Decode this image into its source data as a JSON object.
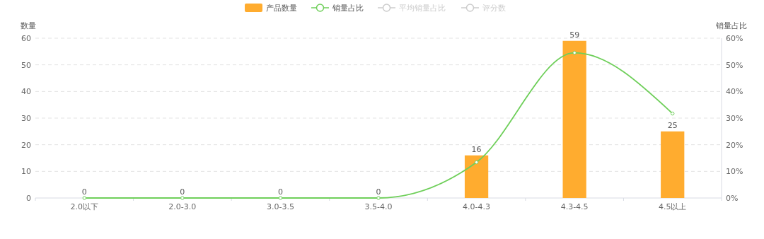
{
  "chart_data": {
    "type": "bar",
    "categories": [
      "2.0以下",
      "2.0-3.0",
      "3.0-3.5",
      "3.5-4.0",
      "4.0-4.3",
      "4.3-4.5",
      "4.5以上"
    ],
    "ylabel": "数量",
    "y2label": "销量占比",
    "ylim": [
      0,
      60
    ],
    "yticks": [
      0,
      10,
      20,
      30,
      40,
      50,
      60
    ],
    "y2lim": [
      0,
      0.6
    ],
    "y2ticks": [
      {
        "value": 0,
        "label": "0%"
      },
      {
        "value": 0.1,
        "label": "10%"
      },
      {
        "value": 0.2,
        "label": "20%"
      },
      {
        "value": 0.3,
        "label": "30%"
      },
      {
        "value": 0.4,
        "label": "40%"
      },
      {
        "value": 0.5,
        "label": "50%"
      },
      {
        "value": 0.6,
        "label": "60%"
      }
    ],
    "grid": "y",
    "legend": "top",
    "marker": "circle",
    "series": [
      {
        "name": "产品数量",
        "color": "#ffac2f",
        "values": [
          0,
          0,
          0,
          0,
          16,
          59,
          25
        ],
        "value_labels": [
          "0",
          "0",
          "0",
          "0",
          "16",
          "59",
          "25"
        ]
      },
      {
        "name": "销量占比",
        "type": "line",
        "axis": "y2",
        "color": "#6fcf5a",
        "values": [
          0,
          0,
          0,
          0,
          0.134,
          0.545,
          0.317
        ]
      },
      {
        "name": "平均销量占比",
        "type": "line",
        "axis": "y2",
        "color": "#cccccc",
        "values": [
          null,
          null,
          null,
          null,
          null,
          null,
          null
        ]
      },
      {
        "name": "评分数",
        "type": "line",
        "axis": "y2",
        "color": "#cccccc",
        "values": [
          null,
          null,
          null,
          null,
          null,
          null,
          null
        ]
      }
    ]
  }
}
